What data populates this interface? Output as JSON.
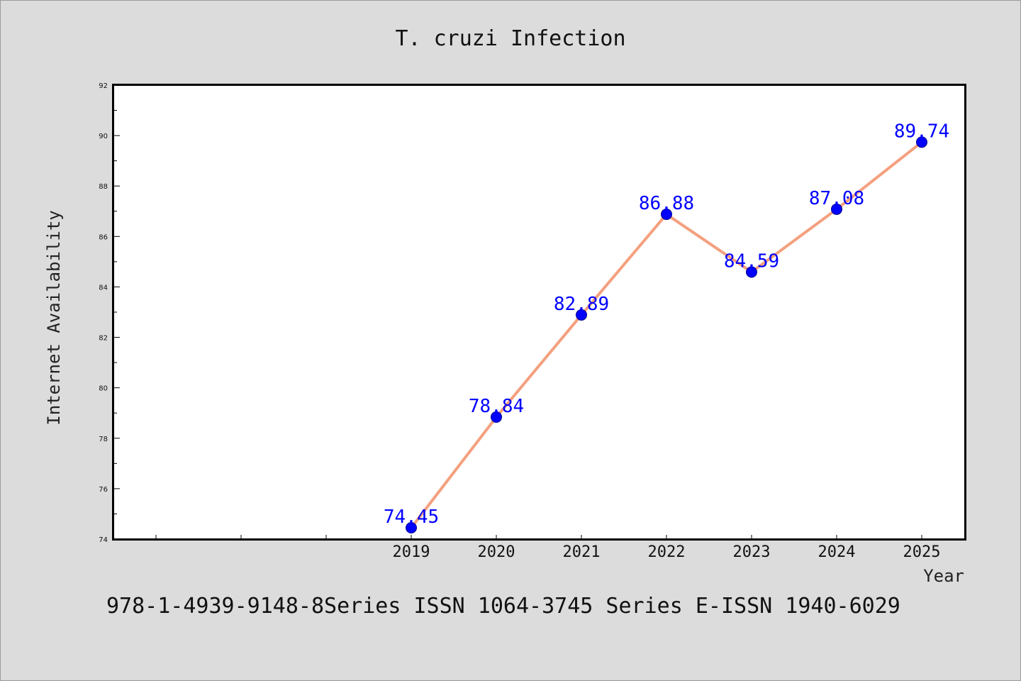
{
  "chart_data": {
    "type": "line",
    "title": "T. cruzi Infection",
    "xlabel": "Year",
    "ylabel": "Internet Availability",
    "x": [
      "2019",
      "2020",
      "2021",
      "2022",
      "2023",
      "2024",
      "2025"
    ],
    "series": [
      {
        "values": [
          74.45,
          78.84,
          82.89,
          86.88,
          84.59,
          87.08,
          89.74
        ],
        "labels": [
          "74.45",
          "78.84",
          "82.89",
          "86.88",
          "84.59",
          "87.08",
          "89.74"
        ]
      }
    ],
    "ylim": [
      74,
      92
    ],
    "yticks": [
      "74",
      "76",
      "78",
      "80",
      "82",
      "84",
      "86",
      "88",
      "90",
      "92"
    ],
    "grid": false,
    "line_color": "#f4a07e",
    "marker_color": "#0000ff",
    "label_color": "#0000ff",
    "background_color": "#dcdcdc",
    "plot_background_color": "#ffffff"
  },
  "footer": {
    "text": "978-1-4939-9148-8Series ISSN 1064-3745 Series E-ISSN 1940-6029"
  }
}
